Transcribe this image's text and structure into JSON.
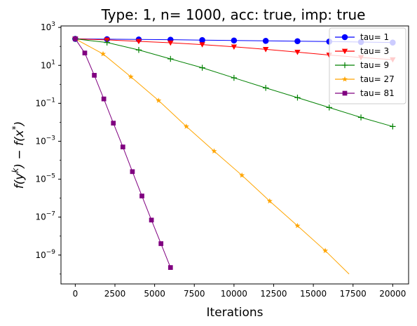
{
  "chart_data": {
    "type": "line",
    "title": "Type: 1, n= 1000, acc: true, imp: true",
    "xlabel": "Iterations",
    "ylabel": "f(y^k) − f(x*)",
    "ylabel_parts": {
      "f1": "f(y",
      "k": "k",
      "mid": ") − f(x",
      "star": "*",
      "end": ")"
    },
    "x_scale": "linear",
    "y_scale": "log",
    "xlim": [
      -900,
      21000
    ],
    "ylim": [
      3e-11,
      1200
    ],
    "x_ticks": [
      0,
      2500,
      5000,
      7500,
      10000,
      12500,
      15000,
      17500,
      20000
    ],
    "x_tick_labels": [
      "0",
      "2500",
      "5000",
      "7500",
      "10000",
      "12500",
      "15000",
      "17500",
      "20000"
    ],
    "y_ticks": [
      1e-09,
      1e-07,
      1e-05,
      0.001,
      0.1,
      10,
      1000
    ],
    "y_tick_labels": [
      {
        "base": "10",
        "exp": "−9"
      },
      {
        "base": "10",
        "exp": "−7"
      },
      {
        "base": "10",
        "exp": "−5"
      },
      {
        "base": "10",
        "exp": "−3"
      },
      {
        "base": "10",
        "exp": "−1"
      },
      {
        "base": "10",
        "exp": "1"
      },
      {
        "base": "10",
        "exp": "3"
      }
    ],
    "legend_position": "top-right",
    "grid": false,
    "series": [
      {
        "name": "tau= 1",
        "color": "#0000ff",
        "marker": "circle",
        "x": [
          0,
          2000,
          4000,
          6000,
          8000,
          10000,
          12000,
          14000,
          16000,
          18000,
          20000
        ],
        "y": [
          250,
          240,
          232,
          225,
          215,
          205,
          196,
          188,
          180,
          170,
          160
        ]
      },
      {
        "name": "tau= 3",
        "color": "#ff0000",
        "marker": "triangle-down",
        "x": [
          0,
          2000,
          4000,
          6000,
          8000,
          10000,
          12000,
          14000,
          16000,
          18000,
          20000
        ],
        "y": [
          250,
          220,
          185,
          155,
          125,
          95,
          70,
          50,
          35,
          26,
          20
        ]
      },
      {
        "name": "tau= 9",
        "color": "#008000",
        "marker": "plus",
        "x": [
          0,
          2000,
          4000,
          6000,
          8000,
          10000,
          12000,
          14000,
          16000,
          18000,
          20000
        ],
        "y": [
          250,
          160,
          65,
          22,
          7.5,
          2.2,
          0.65,
          0.2,
          0.06,
          0.018,
          0.006
        ]
      },
      {
        "name": "tau= 27",
        "color": "#ffa500",
        "marker": "star",
        "x": [
          0,
          1750,
          3500,
          5250,
          7000,
          8750,
          10500,
          12250,
          14000,
          15750,
          17250
        ],
        "y": [
          250,
          40,
          2.5,
          0.14,
          0.006,
          0.0003,
          1.6e-05,
          7e-07,
          3.5e-08,
          1.7e-09,
          1e-10
        ],
        "marker_count": 10
      },
      {
        "name": "tau= 81",
        "color": "#800080",
        "marker": "square",
        "x": [
          0,
          600,
          1200,
          1800,
          2400,
          3000,
          3600,
          4200,
          4800,
          5400,
          6000
        ],
        "y": [
          250,
          45,
          3.0,
          0.17,
          0.009,
          0.0005,
          2.5e-05,
          1.3e-06,
          7e-08,
          4e-09,
          2.2e-10
        ]
      }
    ]
  }
}
